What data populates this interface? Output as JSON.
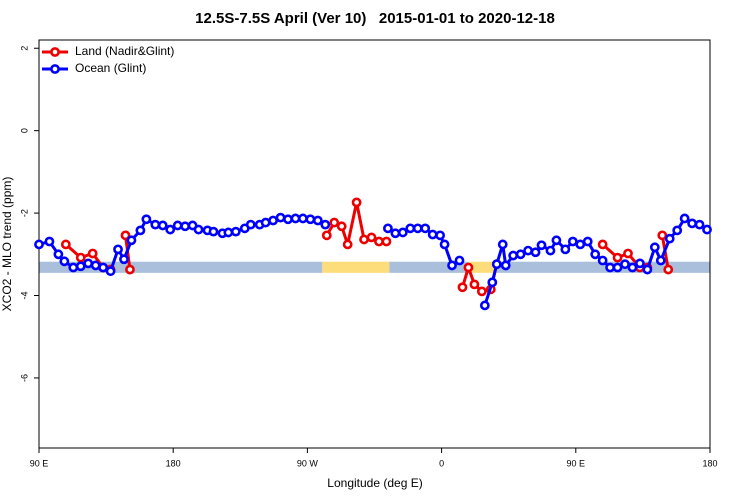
{
  "chart_data": {
    "type": "line",
    "title": "12.5S-7.5S April (Ver 10)   2015-01-01 to 2020-12-18",
    "x_label": "Longitude (deg E)",
    "y_label": "XCO2 - MLO trend (ppm)",
    "xlim": [
      90,
      540
    ],
    "ylim": [
      -7.7,
      2.2
    ],
    "xticks": [
      {
        "value": 90,
        "label": "90 E"
      },
      {
        "value": 180,
        "label": "180"
      },
      {
        "value": 270,
        "label": "90 W"
      },
      {
        "value": 360,
        "label": "0"
      },
      {
        "value": 450,
        "label": "90 E"
      },
      {
        "value": 540,
        "label": "180"
      }
    ],
    "yticks": [
      -6,
      -4,
      -2,
      0,
      2
    ],
    "band": {
      "y": [
        -3.45,
        -3.18
      ],
      "segments": [
        {
          "x": [
            90,
            280
          ],
          "color": "#a9bfdb"
        },
        {
          "x": [
            280,
            325
          ],
          "color": "#fddc7a"
        },
        {
          "x": [
            325,
            378
          ],
          "color": "#a9bfdb"
        },
        {
          "x": [
            378,
            397
          ],
          "color": "#fddc7a"
        },
        {
          "x": [
            397,
            540
          ],
          "color": "#a9bfdb"
        }
      ]
    },
    "legend": "top-left",
    "series": [
      {
        "name": "Land (Nadir&Glint)",
        "color": "#ee0000",
        "x": [
          108,
          118,
          126,
          133,
          138,
          null,
          148,
          151,
          null,
          283,
          288,
          293,
          297,
          303,
          308,
          313,
          318,
          323,
          null,
          374,
          378,
          382,
          387,
          393,
          397,
          null,
          468,
          478,
          485,
          493,
          498,
          null,
          508,
          512
        ],
        "values": [
          -2.76,
          -3.08,
          -2.98,
          -3.32,
          -3.37,
          null,
          -2.54,
          -3.37,
          null,
          -2.54,
          -2.23,
          -2.32,
          -2.76,
          -1.74,
          -2.64,
          -2.59,
          -2.69,
          -2.69,
          null,
          -3.8,
          -3.32,
          -3.73,
          -3.9,
          -3.85,
          -3.24,
          null,
          -2.76,
          -3.08,
          -2.98,
          -3.32,
          -3.32,
          null,
          -2.54,
          -3.37
        ]
      },
      {
        "name": "Ocean (Glint)",
        "color": "#0000ff",
        "x": [
          90,
          97,
          103,
          107,
          113,
          118,
          123,
          128,
          133,
          138,
          143,
          147,
          152,
          158,
          162,
          168,
          173,
          178,
          183,
          188,
          193,
          197,
          203,
          207,
          213,
          217,
          222,
          228,
          232,
          238,
          242,
          247,
          252,
          257,
          262,
          267,
          272,
          277,
          282,
          null,
          324,
          329,
          334,
          339,
          344,
          349,
          354,
          359,
          362,
          367,
          372,
          null,
          389,
          394,
          397,
          401,
          403,
          408,
          413,
          418,
          423,
          427,
          433,
          437,
          443,
          448,
          453,
          458,
          463,
          468,
          473,
          478,
          483,
          488,
          493,
          498,
          503,
          507,
          513,
          518,
          523,
          528,
          533,
          538
        ],
        "values": [
          -2.76,
          -2.69,
          -3.0,
          -3.17,
          -3.32,
          -3.29,
          -3.22,
          -3.27,
          -3.32,
          -3.41,
          -2.88,
          -3.12,
          -2.66,
          -2.42,
          -2.15,
          -2.28,
          -2.3,
          -2.4,
          -2.3,
          -2.32,
          -2.3,
          -2.4,
          -2.42,
          -2.45,
          -2.49,
          -2.47,
          -2.45,
          -2.37,
          -2.28,
          -2.28,
          -2.23,
          -2.18,
          -2.11,
          -2.15,
          -2.13,
          -2.13,
          -2.15,
          -2.18,
          -2.28,
          null,
          -2.37,
          -2.49,
          -2.47,
          -2.37,
          -2.37,
          -2.37,
          -2.52,
          -2.54,
          -2.76,
          -3.27,
          -3.15,
          null,
          -4.24,
          -3.68,
          -3.24,
          -2.76,
          -3.27,
          -3.03,
          -3.0,
          -2.91,
          -2.95,
          -2.78,
          -2.91,
          -2.66,
          -2.88,
          -2.69,
          -2.76,
          -2.69,
          -3.0,
          -3.15,
          -3.32,
          -3.32,
          -3.24,
          -3.32,
          -3.22,
          -3.37,
          -2.83,
          -3.15,
          -2.62,
          -2.42,
          -2.13,
          -2.25,
          -2.28,
          -2.4
        ]
      }
    ]
  }
}
